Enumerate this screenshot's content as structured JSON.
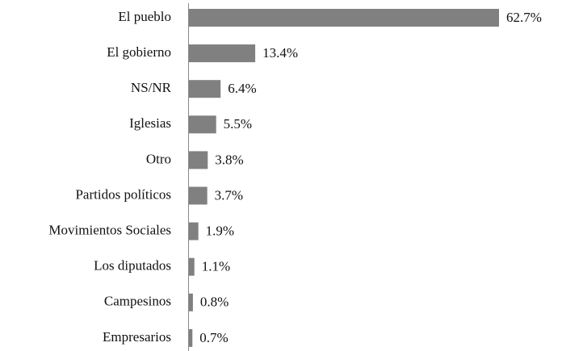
{
  "chart_data": {
    "type": "barh",
    "categories": [
      "El pueblo",
      "El gobierno",
      "NS/NR",
      "Iglesias",
      "Otro",
      "Partidos políticos",
      "Movimientos Sociales",
      "Los diputados",
      "Campesinos",
      "Empresarios"
    ],
    "values": [
      62.7,
      13.4,
      6.4,
      5.5,
      3.8,
      3.7,
      1.9,
      1.1,
      0.8,
      0.7
    ],
    "value_labels": [
      "62.7%",
      "13.4%",
      "6.4%",
      "5.5%",
      "3.8%",
      "3.7%",
      "1.9%",
      "1.1%",
      "0.8%",
      "0.7%"
    ],
    "color": "#808080"
  }
}
